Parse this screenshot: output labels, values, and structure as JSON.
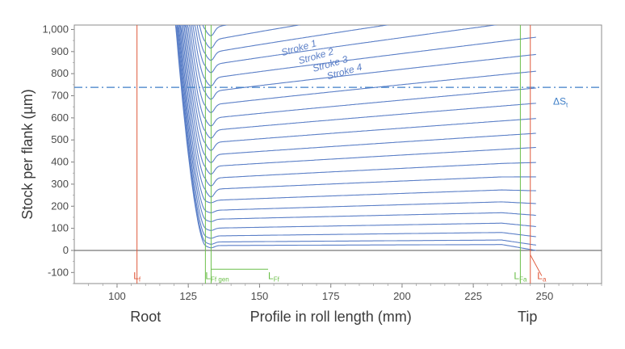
{
  "chart_data": {
    "type": "line",
    "title": "",
    "xlabel": "Profile in roll length (mm)",
    "ylabel": "Stock per flank (µm)",
    "xlim": [
      85,
      270
    ],
    "ylim": [
      -150,
      1020
    ],
    "x_ticks": [
      {
        "value": 100,
        "label": "100"
      },
      {
        "value": 125,
        "label": "125"
      },
      {
        "value": 150,
        "label": "150"
      },
      {
        "value": 175,
        "label": "175"
      },
      {
        "value": 200,
        "label": "200"
      },
      {
        "value": 225,
        "label": "225"
      },
      {
        "value": 250,
        "label": "250"
      }
    ],
    "y_ticks": [
      {
        "value": -100,
        "label": "-100"
      },
      {
        "value": 0,
        "label": "0"
      },
      {
        "value": 100,
        "label": "100"
      },
      {
        "value": 200,
        "label": "200"
      },
      {
        "value": 300,
        "label": "300"
      },
      {
        "value": 400,
        "label": "400"
      },
      {
        "value": 500,
        "label": "500"
      },
      {
        "value": 600,
        "label": "600"
      },
      {
        "value": 700,
        "label": "700"
      },
      {
        "value": 800,
        "label": "800"
      },
      {
        "value": 900,
        "label": "900"
      },
      {
        "value": 1000,
        "label": "1,000"
      }
    ],
    "x_extra_labels": [
      {
        "value": 110,
        "label": "Root"
      },
      {
        "value": 244,
        "label": "Tip"
      }
    ],
    "series_style": {
      "color": "#5b7fc7",
      "x_start": 118,
      "x_end": 247
    },
    "series": [
      {
        "name": "Stroke 1",
        "stock": 1000,
        "rise": 280
      },
      {
        "name": "Stroke 2",
        "stock": 945,
        "rise": 250
      },
      {
        "name": "Stroke 3",
        "stock": 890,
        "rise": 230
      },
      {
        "name": "Stroke 4",
        "stock": 835,
        "rise": 210
      },
      {
        "stock": 775,
        "rise": 190
      },
      {
        "stock": 715,
        "rise": 172
      },
      {
        "stock": 655,
        "rise": 156
      },
      {
        "stock": 595,
        "rise": 140
      },
      {
        "stock": 540,
        "rise": 126
      },
      {
        "stock": 485,
        "rise": 112
      },
      {
        "stock": 430,
        "rise": 100
      },
      {
        "stock": 378,
        "rise": 88
      },
      {
        "stock": 325,
        "rise": 76
      },
      {
        "stock": 275,
        "rise": 64
      },
      {
        "stock": 225,
        "rise": 54
      },
      {
        "stock": 180,
        "rise": 44
      },
      {
        "stock": 140,
        "rise": 34
      },
      {
        "stock": 100,
        "rise": 26
      },
      {
        "stock": 65,
        "rise": 18
      },
      {
        "stock": 38,
        "rise": 10
      },
      {
        "stock": 22,
        "rise": 5
      }
    ],
    "stroke_labels": [
      {
        "text": "Stroke 1",
        "x": 158,
        "y": 880
      },
      {
        "text": "Stroke 2",
        "x": 164,
        "y": 843
      },
      {
        "text": "Stroke 3",
        "x": 169,
        "y": 808
      },
      {
        "text": "Stroke 4",
        "x": 174,
        "y": 773
      }
    ],
    "delta_line": {
      "value": 738,
      "label": "ΔS",
      "subscript": "t",
      "label_x": 253,
      "label_y": 660,
      "color": "#3f7fc7"
    },
    "markers": [
      {
        "name": "root-form-marker",
        "x": 107,
        "label": "L",
        "subscript": "f",
        "color": "#e05a3c",
        "label_x": 107,
        "label_y": -130
      },
      {
        "name": "lfa-marker",
        "x": 241.5,
        "label": "L",
        "subscript": "Fa",
        "color": "#6cbf4a",
        "label_x": 241.5,
        "label_y": -130
      },
      {
        "name": "la-marker",
        "x": 245,
        "label": "L",
        "subscript": "a",
        "color": "#e05a3c",
        "label_x": 249,
        "label_y": -130
      }
    ],
    "generating_marker": {
      "x_left": 131,
      "x_right": 133,
      "label": "L",
      "subscript": "Ff gen",
      "color": "#6cbf4a",
      "label_x": 131,
      "label_y": -130
    },
    "lff_label": {
      "label": "L",
      "subscript": "Ff",
      "x": 153,
      "y": -130,
      "from_x": 133,
      "from_y": -80,
      "color": "#6cbf4a"
    },
    "grid": false
  }
}
